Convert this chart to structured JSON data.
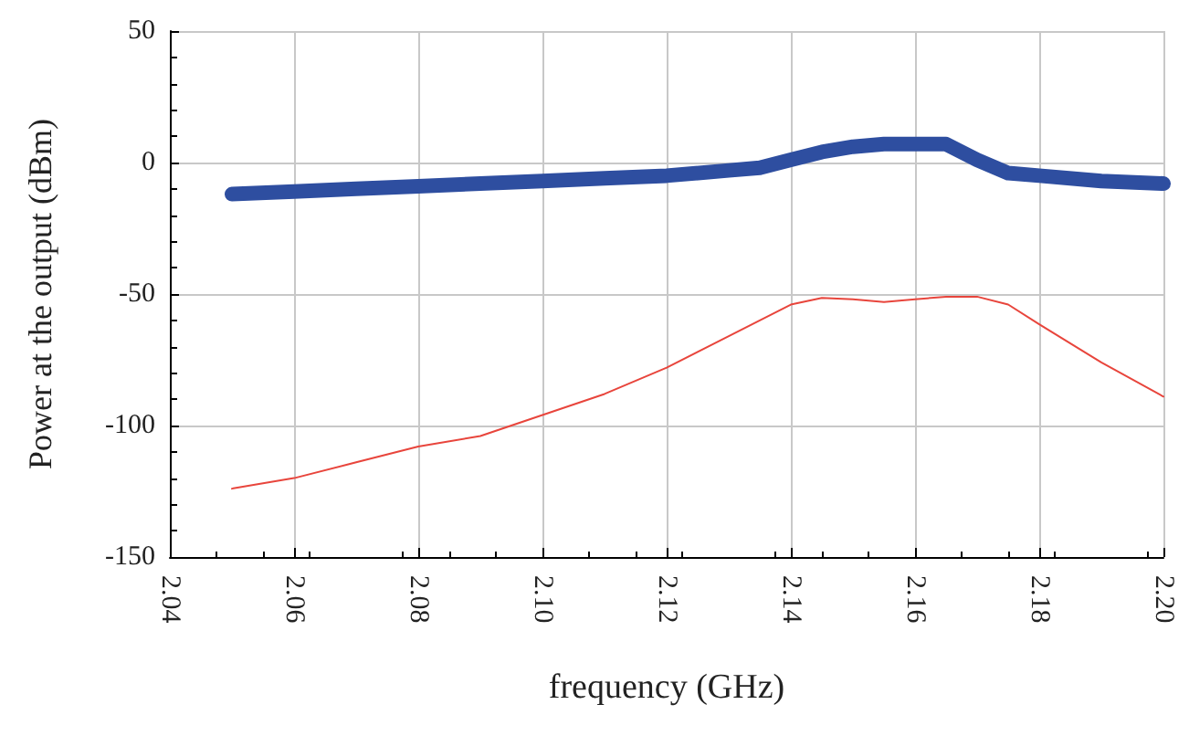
{
  "chart_data": {
    "type": "line",
    "xlabel": "frequency (GHz)",
    "ylabel": "Power at the output (dBm)",
    "xlim": [
      2.04,
      2.2
    ],
    "xticks": [
      {
        "value": 2.04,
        "label": "2.04"
      },
      {
        "value": 2.06,
        "label": "2.06"
      },
      {
        "value": 2.08,
        "label": "2.08"
      },
      {
        "value": 2.1,
        "label": "2.10"
      },
      {
        "value": 2.12,
        "label": "2.12"
      },
      {
        "value": 2.14,
        "label": "2.14"
      },
      {
        "value": 2.16,
        "label": "2.16"
      },
      {
        "value": 2.18,
        "label": "2.18"
      },
      {
        "value": 2.2,
        "label": "2.20"
      }
    ],
    "ylim": [
      -150,
      50
    ],
    "yticks": [
      -150,
      -100,
      -50,
      0,
      50
    ],
    "grid": true,
    "marker": "none",
    "line_style": "solid",
    "series": [
      {
        "color": "#2e4ea0",
        "x": [
          2.05,
          2.06,
          2.07,
          2.08,
          2.09,
          2.1,
          2.11,
          2.12,
          2.13,
          2.135,
          2.14,
          2.145,
          2.15,
          2.155,
          2.165,
          2.17,
          2.175,
          2.18,
          2.19,
          2.2
        ],
        "values": [
          -12,
          -11,
          -10,
          -9,
          -8,
          -7,
          -6,
          -5,
          -3,
          -2,
          1,
          4,
          6,
          7,
          7,
          1,
          -4,
          -5,
          -7,
          -8
        ]
      },
      {
        "color": "#e8453c",
        "x": [
          2.05,
          2.06,
          2.07,
          2.08,
          2.09,
          2.095,
          2.1,
          2.11,
          2.12,
          2.13,
          2.14,
          2.145,
          2.15,
          2.155,
          2.16,
          2.165,
          2.17,
          2.175,
          2.18,
          2.19,
          2.2
        ],
        "values": [
          -124,
          -120,
          -114,
          -108,
          -104,
          -100,
          -96,
          -88,
          -78,
          -66,
          -54,
          -51.5,
          -52,
          -53,
          -52,
          -51,
          -51,
          -54,
          -61.5,
          -76,
          -89
        ]
      }
    ]
  }
}
